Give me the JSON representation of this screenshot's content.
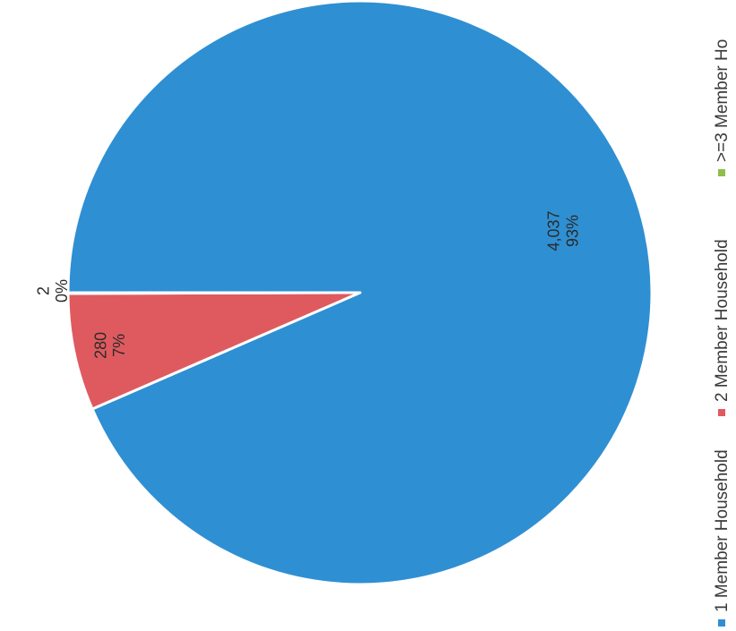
{
  "chart_data": {
    "type": "pie",
    "orientation": "rotated 90 degrees counter-clockwise",
    "legend_position": "bottom",
    "slices": [
      {
        "name": "1 Member Household",
        "value": 4037,
        "value_label": "4,037",
        "percent_label": "93%",
        "color": "#2f8fd3"
      },
      {
        "name": "2 Member Household",
        "value": 280,
        "value_label": "280",
        "percent_label": "7%",
        "color": "#df5a5f"
      },
      {
        "name": ">=3 Member Ho",
        "value": 2,
        "value_label": "2",
        "percent_label": "0%",
        "color": "#8dbf4a"
      }
    ]
  }
}
